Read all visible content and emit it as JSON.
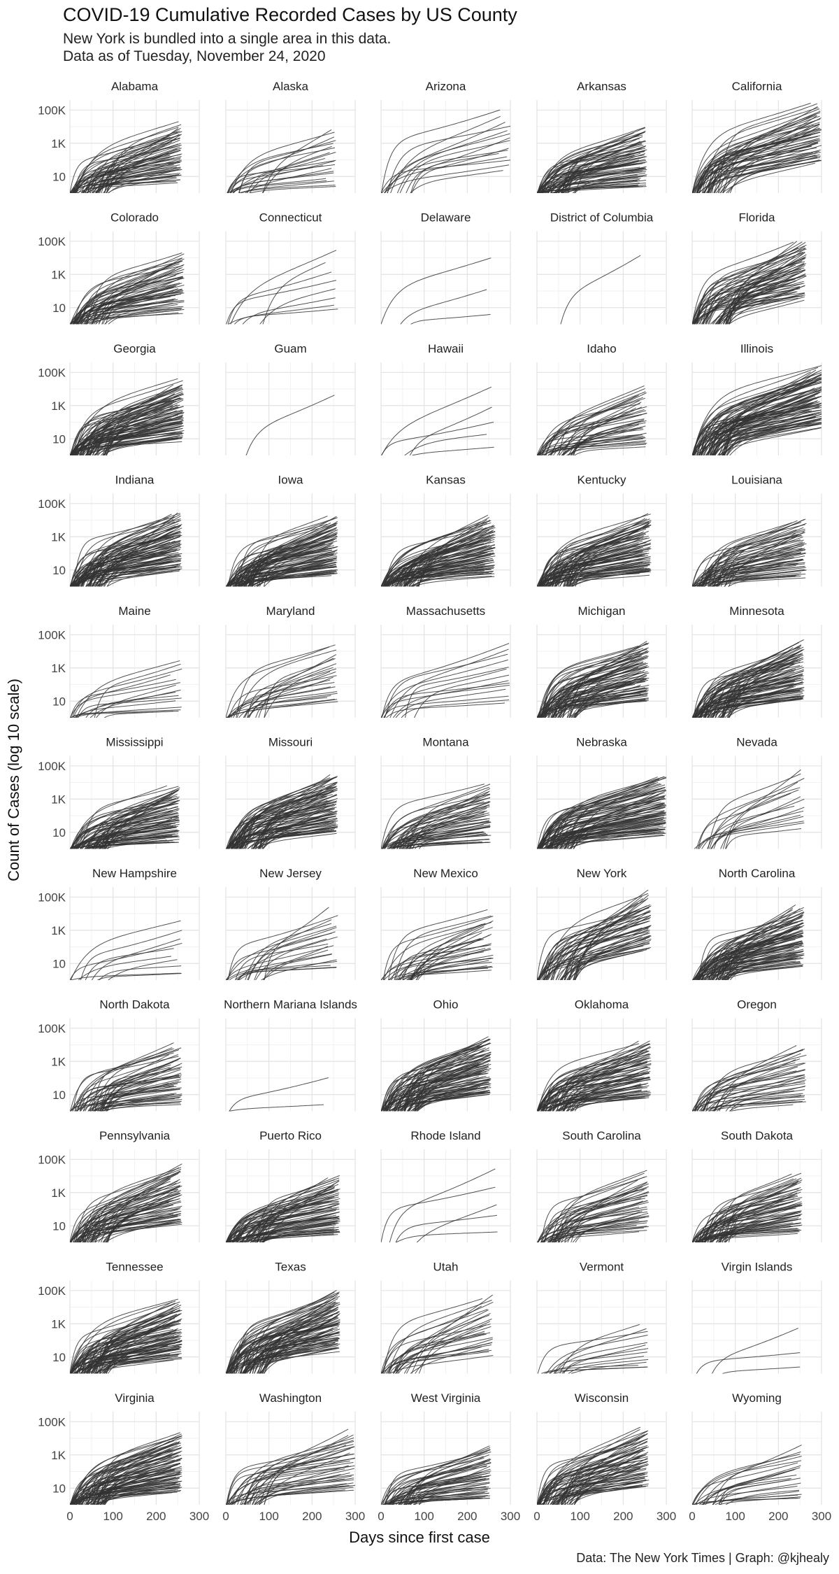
{
  "title": "COVID-19 Cumulative Recorded Cases by US County",
  "subtitle_lines": [
    "New York is bundled into a single area in this data.",
    "Data as of Tuesday, November 24, 2020"
  ],
  "caption": "Data: The New York Times | Graph: @kjhealy",
  "chart_data": {
    "type": "line",
    "layout": "small-multiples",
    "facet_columns": 5,
    "xlabel": "Days since first case",
    "ylabel": "Count of Cases (log 10 scale)",
    "x_scale": "linear",
    "y_scale": "log10",
    "xlim": [
      0,
      300
    ],
    "ylim": [
      1,
      400000
    ],
    "x_ticks": [
      0,
      100,
      200,
      300
    ],
    "y_ticks": [
      {
        "value": 10,
        "label": "10"
      },
      {
        "value": 1000,
        "label": "1K"
      },
      {
        "value": 100000,
        "label": "100K"
      }
    ],
    "grid": true,
    "line_color": "#333333",
    "panels": [
      {
        "name": "Alabama",
        "counties": 65,
        "max_day": 260,
        "top_cases": 25000
      },
      {
        "name": "Alaska",
        "counties": 22,
        "max_day": 255,
        "top_cases": 12000
      },
      {
        "name": "Arizona",
        "counties": 15,
        "max_day": 300,
        "top_cases": 160000
      },
      {
        "name": "Arkansas",
        "counties": 75,
        "max_day": 255,
        "top_cases": 13000
      },
      {
        "name": "California",
        "counties": 58,
        "max_day": 300,
        "top_cases": 350000
      },
      {
        "name": "Colorado",
        "counties": 60,
        "max_day": 265,
        "top_cases": 30000
      },
      {
        "name": "Connecticut",
        "counties": 8,
        "max_day": 260,
        "top_cases": 35000
      },
      {
        "name": "Delaware",
        "counties": 3,
        "max_day": 260,
        "top_cases": 17000
      },
      {
        "name": "District of Columbia",
        "counties": 1,
        "max_day": 260,
        "top_cases": 20000
      },
      {
        "name": "Florida",
        "counties": 67,
        "max_day": 265,
        "top_cases": 200000
      },
      {
        "name": "Georgia",
        "counties": 159,
        "max_day": 265,
        "top_cases": 45000
      },
      {
        "name": "Guam",
        "counties": 1,
        "max_day": 255,
        "top_cases": 7000
      },
      {
        "name": "Hawaii",
        "counties": 5,
        "max_day": 265,
        "top_cases": 15000
      },
      {
        "name": "Idaho",
        "counties": 44,
        "max_day": 255,
        "top_cases": 20000
      },
      {
        "name": "Illinois",
        "counties": 102,
        "max_day": 305,
        "top_cases": 320000
      },
      {
        "name": "Indiana",
        "counties": 92,
        "max_day": 260,
        "top_cases": 45000
      },
      {
        "name": "Iowa",
        "counties": 99,
        "max_day": 260,
        "top_cases": 25000
      },
      {
        "name": "Kansas",
        "counties": 105,
        "max_day": 265,
        "top_cases": 25000
      },
      {
        "name": "Kentucky",
        "counties": 120,
        "max_day": 265,
        "top_cases": 30000
      },
      {
        "name": "Louisiana",
        "counties": 64,
        "max_day": 265,
        "top_cases": 20000
      },
      {
        "name": "Maine",
        "counties": 16,
        "max_day": 260,
        "top_cases": 4000
      },
      {
        "name": "Maryland",
        "counties": 24,
        "max_day": 260,
        "top_cases": 40000
      },
      {
        "name": "Massachusetts",
        "counties": 14,
        "max_day": 300,
        "top_cases": 40000
      },
      {
        "name": "Michigan",
        "counties": 83,
        "max_day": 260,
        "top_cases": 60000
      },
      {
        "name": "Minnesota",
        "counties": 87,
        "max_day": 260,
        "top_cases": 60000
      },
      {
        "name": "Mississippi",
        "counties": 82,
        "max_day": 255,
        "top_cases": 10000
      },
      {
        "name": "Missouri",
        "counties": 115,
        "max_day": 260,
        "top_cases": 50000
      },
      {
        "name": "Montana",
        "counties": 56,
        "max_day": 255,
        "top_cases": 12000
      },
      {
        "name": "Nebraska",
        "counties": 93,
        "max_day": 300,
        "top_cases": 40000
      },
      {
        "name": "Nevada",
        "counties": 17,
        "max_day": 260,
        "top_cases": 100000
      },
      {
        "name": "New Hampshire",
        "counties": 10,
        "max_day": 260,
        "top_cases": 5000
      },
      {
        "name": "New Jersey",
        "counties": 21,
        "max_day": 260,
        "top_cases": 25000
      },
      {
        "name": "New Mexico",
        "counties": 33,
        "max_day": 260,
        "top_cases": 20000
      },
      {
        "name": "New York",
        "counties": 58,
        "max_day": 265,
        "top_cases": 300000
      },
      {
        "name": "North Carolina",
        "counties": 100,
        "max_day": 260,
        "top_cases": 40000
      },
      {
        "name": "North Dakota",
        "counties": 53,
        "max_day": 260,
        "top_cases": 15000
      },
      {
        "name": "Northern Mariana Islands",
        "counties": 2,
        "max_day": 240,
        "top_cases": 110
      },
      {
        "name": "Ohio",
        "counties": 88,
        "max_day": 255,
        "top_cases": 50000
      },
      {
        "name": "Oklahoma",
        "counties": 77,
        "max_day": 265,
        "top_cases": 30000
      },
      {
        "name": "Oregon",
        "counties": 36,
        "max_day": 265,
        "top_cases": 15000
      },
      {
        "name": "Pennsylvania",
        "counties": 67,
        "max_day": 260,
        "top_cases": 60000
      },
      {
        "name": "Puerto Rico",
        "counties": 78,
        "max_day": 265,
        "top_cases": 15000
      },
      {
        "name": "Rhode Island",
        "counties": 5,
        "max_day": 270,
        "top_cases": 30000
      },
      {
        "name": "South Carolina",
        "counties": 46,
        "max_day": 260,
        "top_cases": 25000
      },
      {
        "name": "South Dakota",
        "counties": 66,
        "max_day": 255,
        "top_cases": 20000
      },
      {
        "name": "Tennessee",
        "counties": 95,
        "max_day": 260,
        "top_cases": 40000
      },
      {
        "name": "Texas",
        "counties": 254,
        "max_day": 265,
        "top_cases": 150000
      },
      {
        "name": "Utah",
        "counties": 29,
        "max_day": 260,
        "top_cases": 80000
      },
      {
        "name": "Vermont",
        "counties": 14,
        "max_day": 260,
        "top_cases": 1500
      },
      {
        "name": "Virgin Islands",
        "counties": 3,
        "max_day": 255,
        "top_cases": 900
      },
      {
        "name": "Virginia",
        "counties": 133,
        "max_day": 260,
        "top_cases": 30000
      },
      {
        "name": "Washington",
        "counties": 39,
        "max_day": 300,
        "top_cases": 40000
      },
      {
        "name": "West Virginia",
        "counties": 55,
        "max_day": 255,
        "top_cases": 5000
      },
      {
        "name": "Wisconsin",
        "counties": 72,
        "max_day": 260,
        "top_cases": 60000
      },
      {
        "name": "Wyoming",
        "counties": 23,
        "max_day": 255,
        "top_cases": 5000
      }
    ]
  }
}
